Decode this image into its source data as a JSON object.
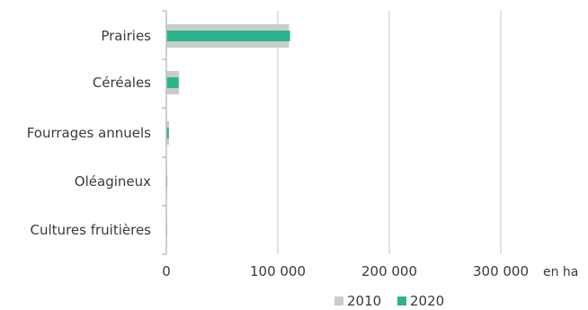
{
  "chart_data": {
    "type": "bar",
    "orientation": "horizontal",
    "categories": [
      "Prairies",
      "Céréales",
      "Fourrages annuels",
      "Oléagineux",
      "Cultures fruitières"
    ],
    "series": [
      {
        "name": "2010",
        "color": "#c9cccb",
        "values": [
          110000,
          11500,
          2500,
          600,
          150
        ]
      },
      {
        "name": "2020",
        "color": "#2db48c",
        "values": [
          111000,
          11000,
          2200,
          900,
          200
        ]
      }
    ],
    "xlim": [
      0,
      340000
    ],
    "xticks": [
      0,
      100000,
      200000,
      300000
    ],
    "tick_labels": [
      "0",
      "100 000",
      "200 000",
      "300 000"
    ],
    "unit": "en ha",
    "grid": "vertical",
    "legend": "bottom"
  }
}
